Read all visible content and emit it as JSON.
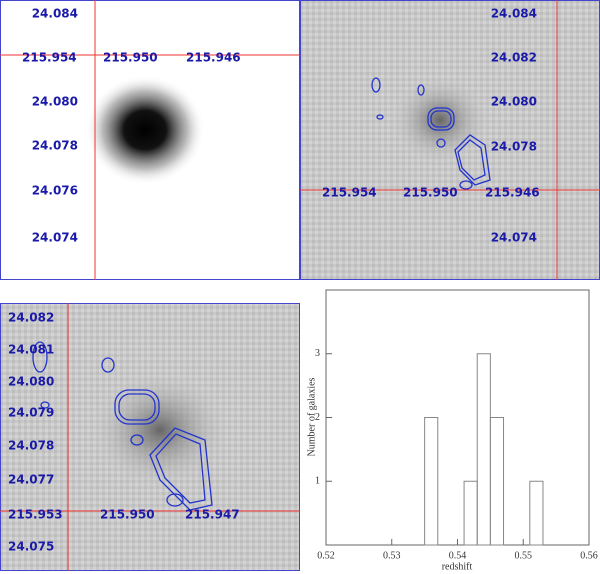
{
  "image_panels": [
    {
      "labels": [
        "24.084",
        "215.954",
        "215.950",
        "215.946",
        "24.080",
        "24.078",
        "24.076",
        "24.074"
      ]
    },
    {
      "labels": [
        "24.084",
        "24.082",
        "24.080",
        "24.078",
        "215.954",
        "215.950",
        "215.946",
        "24.074"
      ]
    },
    {
      "labels": [
        "24.082",
        "24.081",
        "24.080",
        "24.079",
        "24.078",
        "24.077",
        "215.953",
        "215.950",
        "215.947",
        "24.075"
      ]
    }
  ],
  "chart_data": {
    "type": "histogram",
    "xlabel": "redshift",
    "ylabel": "Number of galaxies",
    "bins": [
      0.535,
      0.537,
      0.539,
      0.541,
      0.543,
      0.545,
      0.547,
      0.549,
      0.551,
      0.553
    ],
    "values": [
      2,
      0,
      0,
      1,
      3,
      2,
      0,
      0,
      1
    ],
    "color": "#888888",
    "xlim": [
      0.52,
      0.56
    ],
    "xticks": [
      0.52,
      0.53,
      0.54,
      0.55,
      0.56
    ],
    "ylim": [
      0,
      4
    ],
    "yticks": [
      1,
      2,
      3
    ]
  }
}
